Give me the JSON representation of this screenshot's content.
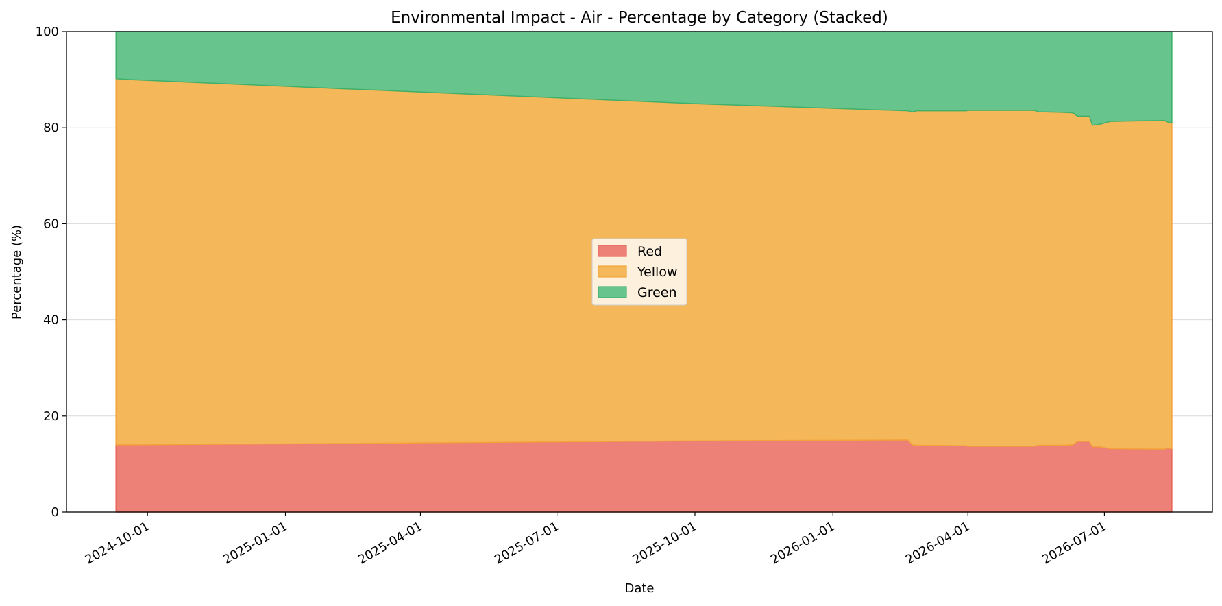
{
  "chart_data": {
    "type": "area",
    "stacked": true,
    "title": "Environmental Impact - Air - Percentage by Category (Stacked)",
    "xlabel": "Date",
    "ylabel": "Percentage (%)",
    "xlim": [
      "2024-08-08",
      "2026-09-11"
    ],
    "ylim": [
      0,
      100
    ],
    "yticks": [
      0,
      20,
      40,
      60,
      80,
      100
    ],
    "xticks": [
      "2024-10-01",
      "2025-01-01",
      "2025-04-01",
      "2025-07-01",
      "2025-10-01",
      "2026-01-01",
      "2026-04-01",
      "2026-07-01"
    ],
    "grid": true,
    "legend_position": "center",
    "colors": {
      "Red": "#ee8177",
      "Yellow": "#f4b85a",
      "Green": "#67c48d"
    },
    "edge_colors": {
      "Red": "#e9655a",
      "Yellow": "#f3a33a",
      "Green": "#3fb06a"
    },
    "x": [
      "2024-09-10",
      "2024-09-20",
      "2025-01-01",
      "2025-10-01",
      "2026-02-20",
      "2026-02-23",
      "2026-02-26",
      "2026-03-31",
      "2026-04-01",
      "2026-04-05",
      "2026-05-15",
      "2026-05-18",
      "2026-05-20",
      "2026-06-01",
      "2026-06-10",
      "2026-06-13",
      "2026-06-15",
      "2026-06-21",
      "2026-06-23",
      "2026-06-28",
      "2026-07-05",
      "2026-08-10",
      "2026-08-12",
      "2026-08-15"
    ],
    "series": [
      {
        "name": "Red",
        "values": [
          14.0,
          14.0,
          14.2,
          14.8,
          15.0,
          14.0,
          13.9,
          13.8,
          13.7,
          13.7,
          13.7,
          13.9,
          13.9,
          13.9,
          14.0,
          14.7,
          14.7,
          14.7,
          13.6,
          13.6,
          13.2,
          13.1,
          13.3,
          13.2
        ]
      },
      {
        "name": "Yellow",
        "values": [
          76.2,
          76.0,
          74.4,
          70.2,
          68.5,
          69.3,
          69.6,
          69.7,
          69.9,
          69.9,
          69.9,
          69.4,
          69.4,
          69.3,
          69.1,
          67.7,
          67.7,
          67.7,
          66.9,
          67.1,
          68.1,
          68.4,
          67.9,
          67.8
        ]
      },
      {
        "name": "Green",
        "values": [
          9.8,
          10.0,
          11.4,
          15.0,
          16.5,
          16.7,
          16.5,
          16.5,
          16.4,
          16.4,
          16.4,
          16.7,
          16.7,
          16.8,
          16.9,
          17.6,
          17.6,
          17.6,
          19.5,
          19.3,
          18.7,
          18.5,
          18.8,
          19.0
        ]
      }
    ]
  }
}
